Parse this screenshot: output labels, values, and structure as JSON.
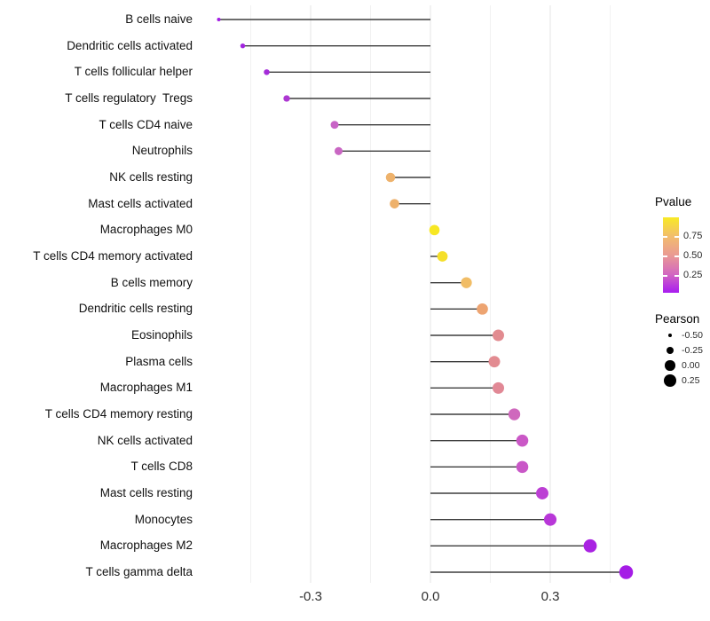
{
  "chart_data": {
    "type": "scatter",
    "subtype": "lollipop",
    "title": "",
    "xlabel": "",
    "ylabel": "",
    "x_axis": {
      "ticks": [
        {
          "label": "-0.3",
          "value": -0.3
        },
        {
          "label": "0.0",
          "value": 0.0
        },
        {
          "label": "0.3",
          "value": 0.3
        }
      ],
      "minor_gridlines": [
        -0.45,
        -0.15,
        0.15,
        0.45
      ],
      "major_gridlines": [
        -0.3,
        0.0,
        0.3
      ],
      "range": [
        -0.58,
        0.545
      ]
    },
    "baseline_value": 0.0,
    "rows": [
      {
        "label": "B cells naive",
        "pearson": -0.53,
        "pvalue": 0.08,
        "color": "#a21ce4"
      },
      {
        "label": "Dendritic cells activated",
        "pearson": -0.47,
        "pvalue": 0.09,
        "color": "#a124de"
      },
      {
        "label": "T cells follicular helper",
        "pearson": -0.41,
        "pvalue": 0.1,
        "color": "#a52cd9"
      },
      {
        "label": "T cells regulatory  Tregs",
        "pearson": -0.36,
        "pvalue": 0.12,
        "color": "#ad37d2"
      },
      {
        "label": "T cells CD4 naive",
        "pearson": -0.24,
        "pvalue": 0.28,
        "color": "#c863c6"
      },
      {
        "label": "Neutrophils",
        "pearson": -0.23,
        "pvalue": 0.29,
        "color": "#c966c3"
      },
      {
        "label": "NK cells resting",
        "pearson": -0.1,
        "pvalue": 0.65,
        "color": "#eeb26c"
      },
      {
        "label": "Mast cells activated",
        "pearson": -0.09,
        "pvalue": 0.65,
        "color": "#eeb16b"
      },
      {
        "label": "Macrophages M0",
        "pearson": 0.01,
        "pvalue": 0.95,
        "color": "#f7e723"
      },
      {
        "label": "T cells CD4 memory activated",
        "pearson": 0.03,
        "pvalue": 0.88,
        "color": "#f5df2a"
      },
      {
        "label": "B cells memory",
        "pearson": 0.09,
        "pvalue": 0.68,
        "color": "#f1bd66"
      },
      {
        "label": "Dendritic cells resting",
        "pearson": 0.13,
        "pvalue": 0.58,
        "color": "#eda471"
      },
      {
        "label": "Eosinophils",
        "pearson": 0.17,
        "pvalue": 0.48,
        "color": "#e28b90"
      },
      {
        "label": "Plasma cells",
        "pearson": 0.16,
        "pvalue": 0.48,
        "color": "#e28b91"
      },
      {
        "label": "Macrophages M1",
        "pearson": 0.17,
        "pvalue": 0.47,
        "color": "#e18895"
      },
      {
        "label": "T cells CD4 memory resting",
        "pearson": 0.21,
        "pvalue": 0.3,
        "color": "#cf68bd"
      },
      {
        "label": "NK cells activated",
        "pearson": 0.23,
        "pvalue": 0.26,
        "color": "#ca58c6"
      },
      {
        "label": "T cells CD8",
        "pearson": 0.23,
        "pvalue": 0.26,
        "color": "#c957c7"
      },
      {
        "label": "Mast cells resting",
        "pearson": 0.28,
        "pvalue": 0.17,
        "color": "#bc3fd4"
      },
      {
        "label": "Monocytes",
        "pearson": 0.3,
        "pvalue": 0.16,
        "color": "#b837d8"
      },
      {
        "label": "Macrophages M2",
        "pearson": 0.4,
        "pvalue": 0.09,
        "color": "#a922e2"
      },
      {
        "label": "T cells gamma delta",
        "pearson": 0.49,
        "pvalue": 0.07,
        "color": "#a51ce6"
      }
    ],
    "legend_pvalue": {
      "title": "Pvalue",
      "ticks": [
        {
          "label": "0.75",
          "value": 0.75
        },
        {
          "label": "0.50",
          "value": 0.5
        },
        {
          "label": "0.25",
          "value": 0.25
        }
      ],
      "bar_range": [
        0.03,
        1.0
      ],
      "gradient_bottom_to_top": [
        "#a81cf0",
        "#d368c0",
        "#ea9a93",
        "#f2bd6d",
        "#f8ea25"
      ]
    },
    "legend_pearson": {
      "title": "Pearson",
      "items": [
        {
          "label": "-0.50",
          "value": -0.5
        },
        {
          "label": "-0.25",
          "value": -0.25
        },
        {
          "label": "0.00",
          "value": 0.0
        },
        {
          "label": "0.25",
          "value": 0.25
        }
      ],
      "dot_color": "#000000"
    },
    "style": {
      "stick_color": "#3d3d3d",
      "major_grid_color": "#e6e6e6",
      "minor_grid_color": "#f2f2f2",
      "background": "#ffffff"
    },
    "layout_hints": {
      "grid": true,
      "legend_position": "right"
    }
  }
}
